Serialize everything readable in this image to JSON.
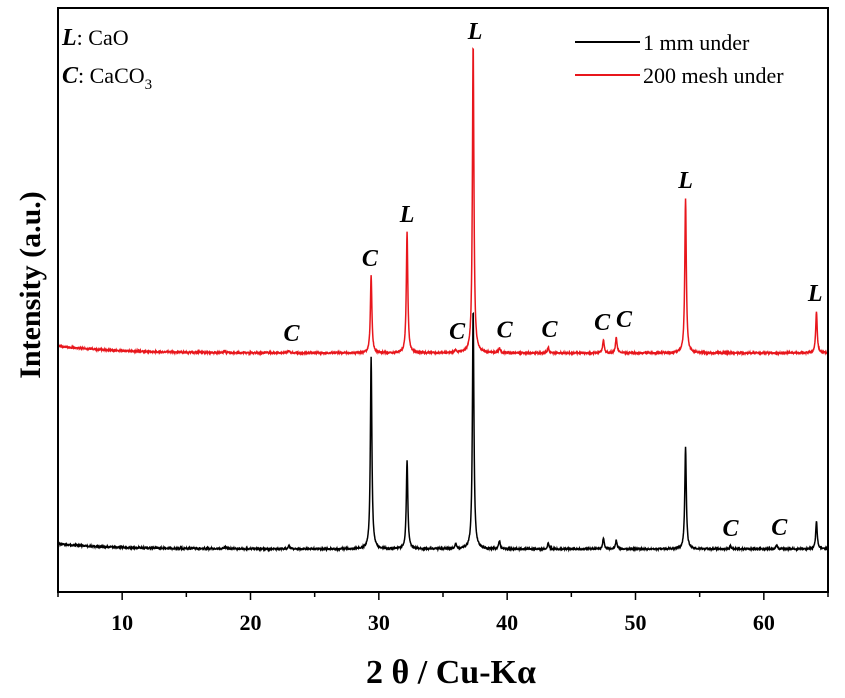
{
  "chart_data": {
    "type": "line",
    "xlabel_main": "2 θ / Cu-Kα",
    "ylabel": "Intensity (a.u.)",
    "xlim": [
      5,
      65
    ],
    "xticks": [
      10,
      20,
      30,
      40,
      50,
      60
    ],
    "xtick_labels": [
      "10",
      "20",
      "30",
      "40",
      "50",
      "60"
    ],
    "yticks": "none",
    "grid": false,
    "legend_position": "top-right",
    "key": [
      {
        "symbol": "L",
        "text": ": CaO"
      },
      {
        "symbol": "C",
        "text": ": CaCO",
        "subscript": "3"
      }
    ],
    "colors": {
      "series_1": "#000000",
      "series_2": "#e8161c"
    },
    "series": [
      {
        "name": "1 mm under",
        "color": "#000000",
        "peaks": [
          {
            "x": 18.0,
            "h": 2
          },
          {
            "x": 23.0,
            "h": 3
          },
          {
            "x": 29.4,
            "h": 192
          },
          {
            "x": 32.2,
            "h": 89
          },
          {
            "x": 36.0,
            "h": 5
          },
          {
            "x": 37.35,
            "h": 240
          },
          {
            "x": 39.4,
            "h": 8
          },
          {
            "x": 43.2,
            "h": 6
          },
          {
            "x": 47.5,
            "h": 11
          },
          {
            "x": 48.5,
            "h": 9
          },
          {
            "x": 53.9,
            "h": 102
          },
          {
            "x": 57.4,
            "h": 3
          },
          {
            "x": 61.0,
            "h": 4
          },
          {
            "x": 64.1,
            "h": 28
          }
        ]
      },
      {
        "name": "200 mesh under",
        "color": "#e8161c",
        "peaks": [
          {
            "x": 18.0,
            "h": 2
          },
          {
            "x": 23.0,
            "h": 2
          },
          {
            "x": 29.4,
            "h": 77
          },
          {
            "x": 32.2,
            "h": 121
          },
          {
            "x": 36.0,
            "h": 3
          },
          {
            "x": 37.35,
            "h": 310
          },
          {
            "x": 39.4,
            "h": 5
          },
          {
            "x": 43.2,
            "h": 6
          },
          {
            "x": 47.5,
            "h": 13
          },
          {
            "x": 48.5,
            "h": 16
          },
          {
            "x": 53.9,
            "h": 155
          },
          {
            "x": 64.1,
            "h": 42
          }
        ]
      }
    ],
    "annotations": [
      {
        "text": "C",
        "x": 23.2,
        "trace": "200 mesh under"
      },
      {
        "text": "C",
        "x": 29.3,
        "trace": "200 mesh under"
      },
      {
        "text": "L",
        "x": 32.2,
        "trace": "200 mesh under"
      },
      {
        "text": "C",
        "x": 36.1,
        "trace": "200 mesh under"
      },
      {
        "text": "L",
        "x": 37.5,
        "trace": "200 mesh under"
      },
      {
        "text": "C",
        "x": 39.8,
        "trace": "200 mesh under"
      },
      {
        "text": "C",
        "x": 43.3,
        "trace": "200 mesh under"
      },
      {
        "text": "C",
        "x": 47.4,
        "trace": "200 mesh under"
      },
      {
        "text": "C",
        "x": 49.1,
        "trace": "200 mesh under"
      },
      {
        "text": "L",
        "x": 53.9,
        "trace": "200 mesh under"
      },
      {
        "text": "L",
        "x": 64.0,
        "trace": "200 mesh under"
      },
      {
        "text": "C",
        "x": 57.4,
        "trace": "1 mm under"
      },
      {
        "text": "C",
        "x": 61.2,
        "trace": "1 mm under"
      }
    ]
  }
}
